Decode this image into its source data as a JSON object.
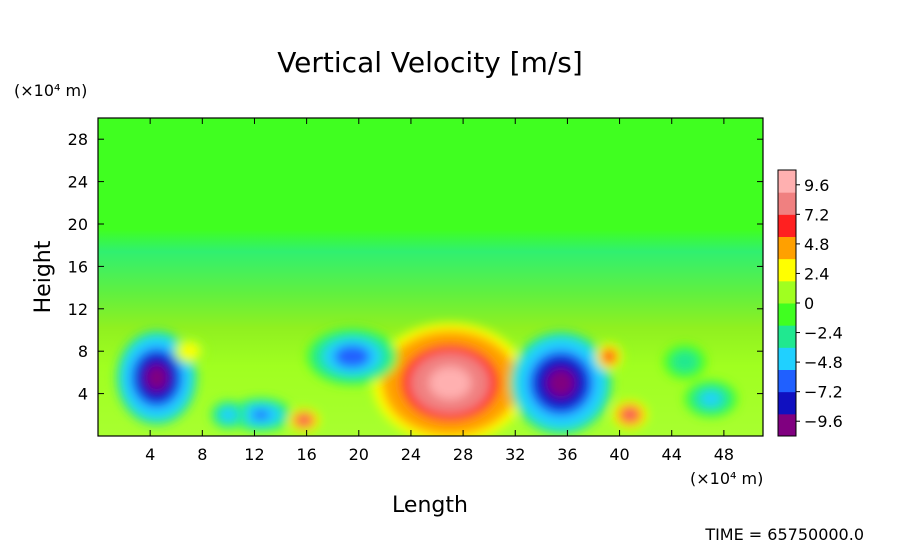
{
  "chart_data": {
    "type": "heatmap",
    "title": "Vertical Velocity [m/s]",
    "xlabel": "Length",
    "ylabel": "Height",
    "x_unit": "(×10⁴ m)",
    "y_unit": "(×10⁴ m)",
    "xlim": [
      0,
      51
    ],
    "ylim": [
      0,
      30
    ],
    "x_ticks": [
      4,
      8,
      12,
      16,
      20,
      24,
      28,
      32,
      36,
      40,
      44,
      48
    ],
    "y_ticks": [
      4,
      8,
      12,
      16,
      20,
      24,
      28
    ],
    "colorbar": {
      "vmin": -10.8,
      "vmax": 10.8,
      "tick_values": [
        9.6,
        7.2,
        4.8,
        2.4,
        0,
        -2.4,
        -4.8,
        -7.2,
        -9.6
      ],
      "tick_labels": [
        "9.6",
        "7.2",
        "4.8",
        "2.4",
        "0",
        "−2.4",
        "−4.8",
        "−7.2",
        "−9.6"
      ],
      "colors": [
        "#800080",
        "#1010c0",
        "#2060ff",
        "#20d0ff",
        "#20e890",
        "#40ff20",
        "#a0ff20",
        "#ffff00",
        "#ffa000",
        "#ff2020",
        "#f08080",
        "#ffb0b0"
      ]
    },
    "features": [
      {
        "label": "updraft core",
        "x": 27,
        "y": 5.0,
        "rx": 4.4,
        "ry": 4.2,
        "value": 10.0
      },
      {
        "label": "downdraft left",
        "x": 4.5,
        "y": 5.5,
        "rx": 2.3,
        "ry": 3.3,
        "value": -10.0
      },
      {
        "label": "downdraft right",
        "x": 35.5,
        "y": 5.0,
        "rx": 2.9,
        "ry": 3.6,
        "value": -10.0
      },
      {
        "label": "downdraft mid",
        "x": 19.5,
        "y": 7.5,
        "rx": 2.6,
        "ry": 2.0,
        "value": -6.5
      },
      {
        "label": "downdraft low",
        "x": 12.5,
        "y": 2.0,
        "rx": 1.8,
        "ry": 1.2,
        "value": -6.0
      },
      {
        "label": "downdraft low 2",
        "x": 10.0,
        "y": 2.0,
        "rx": 1.0,
        "ry": 1.0,
        "value": -5.0
      },
      {
        "label": "downdraft far right",
        "x": 47.0,
        "y": 3.5,
        "rx": 1.5,
        "ry": 1.3,
        "value": -4.5
      },
      {
        "label": "downdraft far right 2",
        "x": 45.0,
        "y": 7.0,
        "rx": 1.2,
        "ry": 1.2,
        "value": -3.5
      },
      {
        "label": "updraft small 1",
        "x": 15.8,
        "y": 1.5,
        "rx": 0.9,
        "ry": 0.8,
        "value": 7.5
      },
      {
        "label": "updraft small 2",
        "x": 40.8,
        "y": 2.0,
        "rx": 1.0,
        "ry": 1.0,
        "value": 7.5
      },
      {
        "label": "updraft small 3",
        "x": 39.2,
        "y": 7.5,
        "rx": 0.8,
        "ry": 1.0,
        "value": 6.5
      },
      {
        "label": "updraft small 4",
        "x": 7.0,
        "y": 8.0,
        "rx": 0.9,
        "ry": 0.9,
        "value": 3.5
      }
    ],
    "time_label": "TIME = 65750000.0"
  }
}
